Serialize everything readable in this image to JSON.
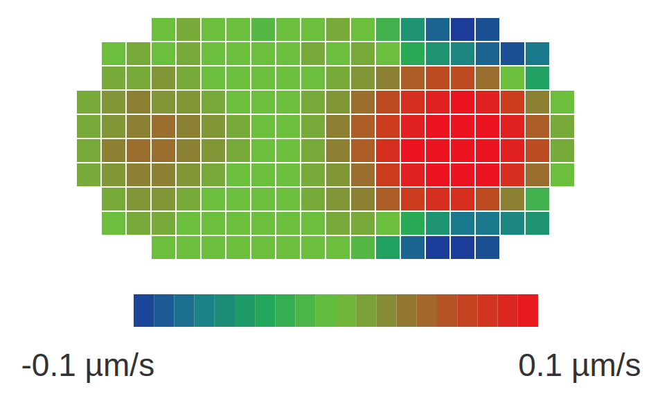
{
  "chart_data": {
    "type": "heatmap",
    "tick_labels": false,
    "values": [
      [
        null,
        null,
        null,
        0.0,
        0.01,
        0.0,
        0.0,
        -0.01,
        0.0,
        0.0,
        0.01,
        0.0,
        -0.02,
        -0.05,
        -0.08,
        -0.1,
        -0.09,
        null,
        null,
        null
      ],
      [
        null,
        0.0,
        0.01,
        0.0,
        0.01,
        0.0,
        0.0,
        0.0,
        0.0,
        0.01,
        0.0,
        0.01,
        0.0,
        -0.03,
        -0.05,
        -0.06,
        -0.08,
        -0.09,
        -0.07,
        null
      ],
      [
        null,
        0.01,
        0.01,
        0.02,
        0.01,
        0.0,
        0.0,
        0.0,
        0.0,
        0.0,
        0.01,
        0.02,
        0.03,
        0.05,
        0.06,
        0.06,
        0.04,
        0.0,
        -0.04,
        null
      ],
      [
        0.01,
        0.02,
        0.03,
        0.02,
        0.02,
        0.01,
        0.0,
        0.0,
        0.0,
        0.01,
        0.02,
        0.04,
        0.06,
        0.08,
        0.09,
        0.1,
        0.09,
        0.07,
        0.03,
        0.0
      ],
      [
        0.01,
        0.02,
        0.03,
        0.04,
        0.03,
        0.02,
        0.01,
        0.0,
        0.0,
        0.01,
        0.03,
        0.05,
        0.07,
        0.09,
        0.1,
        0.1,
        0.1,
        0.09,
        0.05,
        0.01
      ],
      [
        0.01,
        0.03,
        0.04,
        0.04,
        0.03,
        0.02,
        0.01,
        0.0,
        0.0,
        0.01,
        0.03,
        0.05,
        0.08,
        0.1,
        0.1,
        0.1,
        0.1,
        0.09,
        0.06,
        0.01
      ],
      [
        0.01,
        0.02,
        0.03,
        0.03,
        0.02,
        0.01,
        0.0,
        0.0,
        0.0,
        0.01,
        0.02,
        0.04,
        0.07,
        0.09,
        0.1,
        0.1,
        0.1,
        0.08,
        0.04,
        0.0
      ],
      [
        null,
        0.01,
        0.02,
        0.02,
        0.01,
        0.0,
        0.0,
        0.0,
        0.0,
        0.01,
        0.02,
        0.03,
        0.05,
        0.07,
        0.08,
        0.08,
        0.06,
        0.03,
        -0.02,
        null
      ],
      [
        null,
        0.0,
        0.01,
        0.01,
        0.0,
        0.0,
        0.0,
        0.0,
        0.0,
        0.0,
        0.01,
        0.01,
        0.0,
        -0.03,
        -0.05,
        -0.07,
        -0.07,
        -0.06,
        -0.05,
        null
      ],
      [
        null,
        null,
        null,
        0.0,
        0.0,
        0.0,
        0.0,
        0.0,
        0.0,
        0.0,
        0.0,
        -0.01,
        -0.04,
        -0.08,
        -0.1,
        -0.1,
        -0.09,
        null,
        null,
        null
      ]
    ],
    "colorbar_lim": [
      -0.1,
      0.1
    ],
    "colorbar_ticks": [
      {
        "value": -0.1,
        "label": "-0.1 µm/s"
      },
      {
        "value": 0.1,
        "label": "0.1 µm/s"
      }
    ]
  }
}
